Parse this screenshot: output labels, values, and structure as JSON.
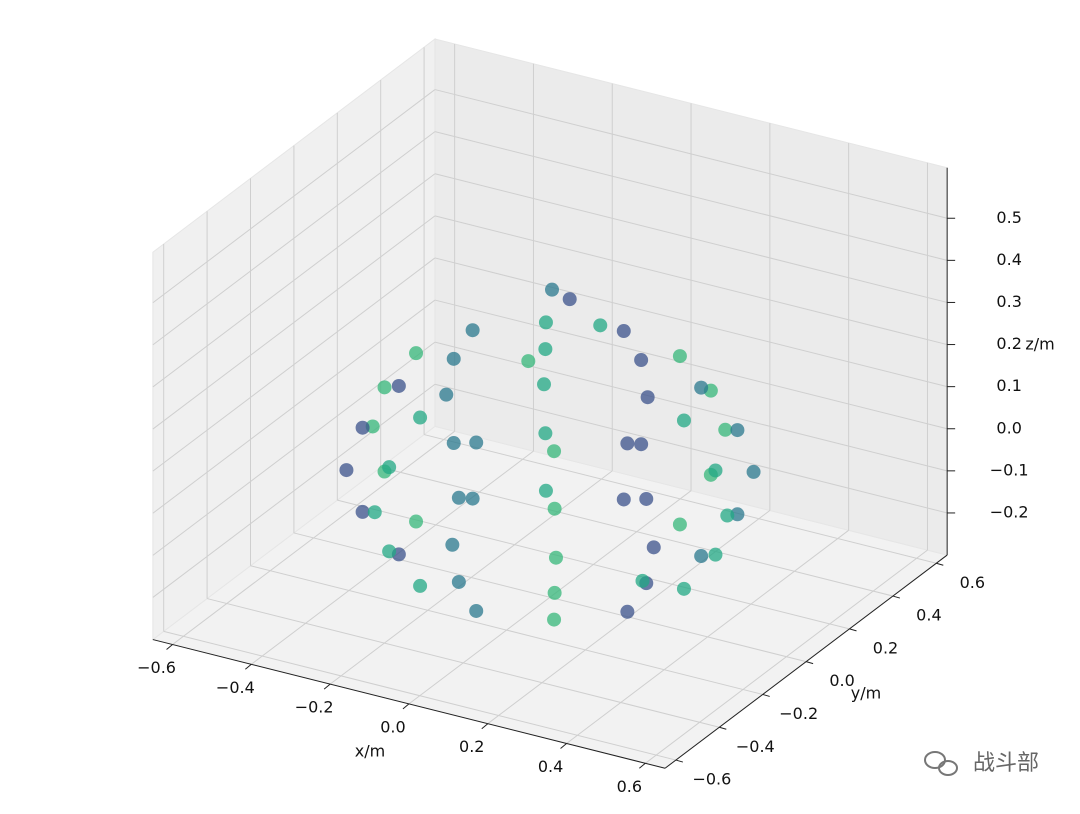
{
  "chart_data": {
    "type": "scatter3d",
    "xlabel": "x/m",
    "ylabel": "y/m",
    "zlabel": "z/m",
    "xlim": [
      -0.65,
      0.65
    ],
    "ylim": [
      -0.65,
      0.65
    ],
    "zlim": [
      -0.3,
      0.62
    ],
    "xticks": [
      {
        "value": -0.6,
        "label": "−0.6"
      },
      {
        "value": -0.4,
        "label": "−0.4"
      },
      {
        "value": -0.2,
        "label": "−0.2"
      },
      {
        "value": 0,
        "label": "0.0"
      },
      0.2,
      0.4,
      0.6
    ],
    "yticks": [
      {
        "value": -0.6,
        "label": "−0.6"
      },
      {
        "value": -0.4,
        "label": "−0.4"
      },
      {
        "value": -0.2,
        "label": "−0.2"
      },
      {
        "value": 0,
        "label": "0.0"
      },
      0.2,
      0.4,
      0.6
    ],
    "zticks": [
      {
        "value": -0.2,
        "label": "−0.2"
      },
      {
        "value": -0.1,
        "label": "−0.1"
      },
      {
        "value": 0,
        "label": "0.0"
      },
      0.1,
      0.2,
      0.3,
      0.4,
      0.5
    ],
    "grid": true,
    "colors": [
      "#22a884",
      "#2a788e",
      "#35b779",
      "#3b528b"
    ],
    "x": [
      0.34,
      0.29,
      0.17,
      0,
      -0.17,
      -0.29,
      -0.34,
      -0.29,
      -0.17,
      0,
      0.17,
      0.29,
      0.42,
      0.36,
      0.21,
      0,
      -0.21,
      -0.36,
      -0.42,
      -0.36,
      -0.21,
      0,
      0.21,
      0.36,
      0.45,
      0.39,
      0.23,
      0,
      -0.23,
      -0.39,
      -0.45,
      -0.39,
      -0.23,
      0,
      0.23,
      0.39,
      0.42,
      0.36,
      0.21,
      0,
      -0.21,
      -0.36,
      -0.42,
      -0.36,
      -0.21,
      0,
      0.21,
      0.36,
      0.34,
      0.29,
      0.17,
      0,
      -0.17,
      -0.29,
      -0.34,
      -0.29,
      -0.17,
      0,
      0.17,
      0.29,
      0.1,
      -0.05,
      0,
      0.05,
      0.4
    ],
    "y": [
      0,
      0.17,
      0.29,
      0.34,
      0.29,
      0.17,
      0,
      -0.17,
      -0.29,
      -0.34,
      -0.29,
      -0.17,
      0,
      0.21,
      0.36,
      0.42,
      0.36,
      0.21,
      0,
      -0.21,
      -0.36,
      -0.42,
      -0.36,
      -0.21,
      0,
      0.23,
      0.39,
      0.45,
      0.39,
      0.23,
      0,
      -0.23,
      -0.39,
      -0.45,
      -0.39,
      -0.23,
      0,
      0.21,
      0.36,
      0.42,
      0.36,
      0.21,
      0,
      -0.21,
      -0.36,
      -0.42,
      -0.36,
      -0.21,
      0,
      0.17,
      0.29,
      0.34,
      0.29,
      0.17,
      0,
      -0.17,
      -0.29,
      -0.34,
      -0.29,
      -0.17,
      0.05,
      0.1,
      -0.1,
      0,
      -0.3
    ],
    "z": [
      -0.2,
      -0.2,
      -0.2,
      -0.2,
      -0.2,
      -0.2,
      -0.2,
      -0.2,
      -0.2,
      -0.2,
      -0.2,
      -0.2,
      -0.1,
      -0.1,
      -0.1,
      -0.1,
      -0.1,
      -0.1,
      -0.1,
      -0.1,
      -0.1,
      -0.1,
      -0.1,
      -0.1,
      0,
      0,
      0,
      0,
      0,
      0,
      0,
      0,
      0,
      0,
      0,
      0,
      0.1,
      0.1,
      0.1,
      0.1,
      0.1,
      0.1,
      0.1,
      0.1,
      0.1,
      0.1,
      0.1,
      0.1,
      0.2,
      0.2,
      0.2,
      0.2,
      0.2,
      0.2,
      0.2,
      0.2,
      0.2,
      0.2,
      0.2,
      0.2,
      0.35,
      0.38,
      0.3,
      0.42,
      -0.05
    ]
  },
  "watermark": "战斗部"
}
